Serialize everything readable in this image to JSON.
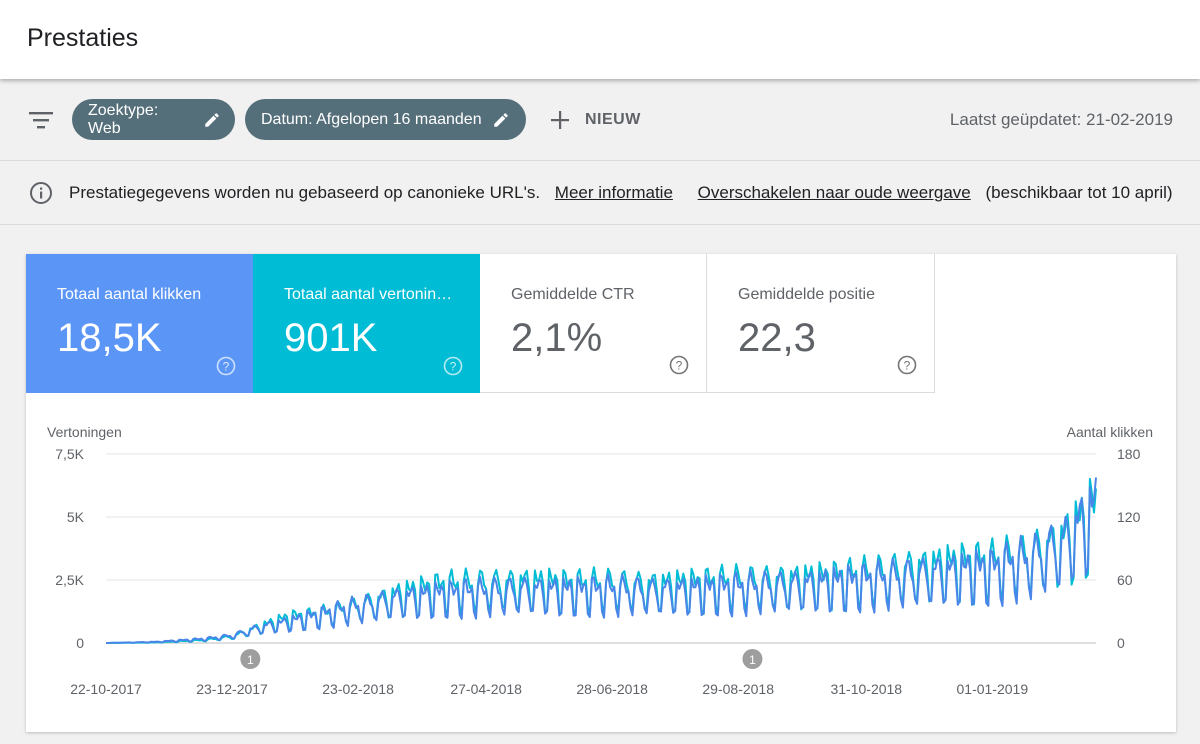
{
  "header": {
    "title": "Prestaties"
  },
  "toolbar": {
    "filter_icon": "filter-list-icon",
    "chips": [
      {
        "label": "Zoektype: Web",
        "icon": "pencil-icon"
      },
      {
        "label": "Datum: Afgelopen 16 maanden",
        "icon": "pencil-icon"
      }
    ],
    "new_label": "NIEUW",
    "updated": "Laatst geüpdatet: 21-02-2019"
  },
  "info": {
    "icon": "info-icon",
    "text": "Prestatiegegevens worden nu gebaseerd op canonieke URL's.",
    "link_more": "Meer informatie",
    "link_switch": "Overschakelen naar oude weergave",
    "suffix": "(beschikbaar tot 10 april)"
  },
  "metrics": [
    {
      "label": "Totaal aantal klikken",
      "value": "18,5K",
      "color": "#5b96f7"
    },
    {
      "label": "Totaal aantal vertoningen",
      "value": "901K",
      "color": "#00bcd4"
    },
    {
      "label": "Gemiddelde CTR",
      "value": "2,1%"
    },
    {
      "label": "Gemiddelde positie",
      "value": "22,3"
    }
  ],
  "chart_data": {
    "type": "line",
    "y_left_label": "Vertoningen",
    "y_right_label": "Aantal klikken",
    "y_left_ticks": [
      "0",
      "2,5K",
      "5K",
      "7,5K"
    ],
    "y_right_ticks": [
      "0",
      "60",
      "120",
      "180"
    ],
    "y_left_range": [
      0,
      7500
    ],
    "y_right_range": [
      0,
      180
    ],
    "x_ticks": [
      "22-10-2017",
      "23-12-2017",
      "23-02-2018",
      "27-04-2018",
      "28-06-2018",
      "29-08-2018",
      "31-10-2018",
      "01-01-2019"
    ],
    "grid": true,
    "annotations": [
      {
        "label": "1",
        "date": "2018-01-01"
      },
      {
        "label": "1",
        "date": "2018-09-05"
      }
    ],
    "series": [
      {
        "name": "Totaal aantal vertoningen",
        "axis": "left",
        "color": "#00bcd4",
        "x": [
          "2017-10-22",
          "2017-11-15",
          "2017-12-10",
          "2017-12-23",
          "2018-01-06",
          "2018-01-20",
          "2018-02-03",
          "2018-02-23",
          "2018-03-15",
          "2018-04-05",
          "2018-04-27",
          "2018-05-18",
          "2018-06-08",
          "2018-06-28",
          "2018-07-18",
          "2018-08-08",
          "2018-08-29",
          "2018-09-19",
          "2018-10-10",
          "2018-10-31",
          "2018-11-20",
          "2018-12-10",
          "2019-01-01",
          "2019-01-20",
          "2019-02-05",
          "2019-02-21"
        ],
        "y": [
          0,
          20,
          120,
          250,
          650,
          1000,
          1100,
          1450,
          1900,
          2200,
          2300,
          2350,
          2250,
          2300,
          2250,
          2300,
          2400,
          2450,
          2500,
          2650,
          2900,
          3050,
          3150,
          3500,
          4000,
          5300
        ]
      },
      {
        "name": "Totaal aantal klikken",
        "axis": "right",
        "color": "#4a86e8",
        "x": [
          "2017-10-22",
          "2017-11-15",
          "2017-12-10",
          "2017-12-23",
          "2018-01-06",
          "2018-01-20",
          "2018-02-03",
          "2018-02-23",
          "2018-03-15",
          "2018-04-05",
          "2018-04-27",
          "2018-05-18",
          "2018-06-08",
          "2018-06-28",
          "2018-07-18",
          "2018-08-08",
          "2018-08-29",
          "2018-09-19",
          "2018-10-10",
          "2018-10-31",
          "2018-11-20",
          "2018-12-10",
          "2019-01-01",
          "2019-01-20",
          "2019-02-05",
          "2019-02-21"
        ],
        "y": [
          0,
          1,
          4,
          7,
          15,
          20,
          26,
          35,
          42,
          46,
          48,
          50,
          49,
          50,
          49,
          50,
          52,
          54,
          56,
          59,
          63,
          67,
          70,
          80,
          95,
          128
        ]
      }
    ]
  }
}
